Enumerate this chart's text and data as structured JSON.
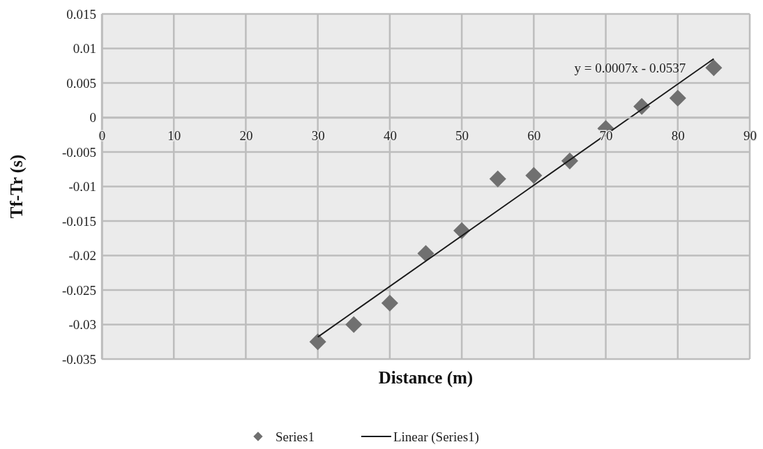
{
  "chart_data": {
    "type": "scatter",
    "xlabel": "Distance (m)",
    "ylabel": "Tf-Tr (s)",
    "xlim": [
      0,
      90
    ],
    "xticks": [
      0,
      10,
      20,
      30,
      40,
      50,
      60,
      70,
      80,
      90
    ],
    "ylim": [
      -0.035,
      0.015
    ],
    "yticks": [
      -0.035,
      -0.03,
      -0.025,
      -0.02,
      -0.015,
      -0.01,
      -0.005,
      0,
      0.005,
      0.01,
      0.015
    ],
    "grid": true,
    "legend": "bottom",
    "marker": "diamond",
    "annotations": [
      "y = 0.0007x - 0.0537"
    ],
    "series": [
      {
        "name": "Series1",
        "color": "#707070",
        "x": [
          30,
          35,
          40,
          45,
          50,
          55,
          60,
          65,
          70,
          75,
          80,
          85
        ],
        "values": [
          -0.0325,
          -0.03,
          -0.0269,
          -0.0197,
          -0.0164,
          -0.0089,
          -0.0084,
          -0.0063,
          -0.0016,
          0.0016,
          0.0028,
          0.0072
        ]
      },
      {
        "name": "Linear (Series1)",
        "type": "line",
        "marker": "none",
        "line_style": "solid",
        "color": "#1a1a1a",
        "x": [
          30,
          85
        ],
        "values": [
          -0.0318,
          0.0085
        ]
      }
    ]
  }
}
